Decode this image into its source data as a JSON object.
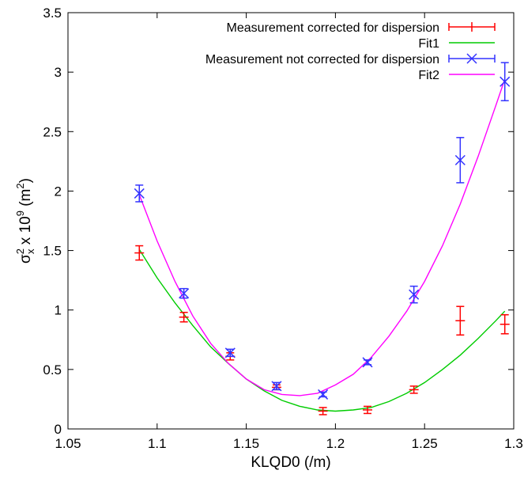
{
  "chart_data": {
    "type": "scatter",
    "xlabel": "KLQD0 (/m)",
    "ylabel": {
      "sigma": "σ",
      "sup1": "2",
      "sub1": "x",
      "mid": " x 10",
      "sup2": "9",
      "unit_open": " (m",
      "sup3": "2",
      "unit_close": ")"
    },
    "xlim": [
      1.05,
      1.3
    ],
    "ylim": [
      0,
      3.5
    ],
    "xticks": [
      1.05,
      1.1,
      1.15,
      1.2,
      1.25,
      1.3
    ],
    "xtick_labels": [
      "1.05",
      "1.1",
      "1.15",
      "1.2",
      "1.25",
      "1.3"
    ],
    "yticks": [
      0,
      0.5,
      1,
      1.5,
      2,
      2.5,
      3,
      3.5
    ],
    "ytick_labels": [
      "0",
      "0.5",
      "1",
      "1.5",
      "2",
      "2.5",
      "3",
      "3.5"
    ],
    "grid": false,
    "legend_position": "top-right",
    "series": [
      {
        "name": "Measurement corrected for dispersion",
        "kind": "errorbar",
        "marker": "plus",
        "color": "#ff0000",
        "points": [
          {
            "x": 1.09,
            "y": 1.48,
            "err": 0.06
          },
          {
            "x": 1.115,
            "y": 0.94,
            "err": 0.04
          },
          {
            "x": 1.141,
            "y": 0.61,
            "err": 0.03
          },
          {
            "x": 1.167,
            "y": 0.35,
            "err": 0.02
          },
          {
            "x": 1.193,
            "y": 0.15,
            "err": 0.03
          },
          {
            "x": 1.218,
            "y": 0.16,
            "err": 0.03
          },
          {
            "x": 1.244,
            "y": 0.33,
            "err": 0.03
          },
          {
            "x": 1.27,
            "y": 0.91,
            "err": 0.12
          },
          {
            "x": 1.295,
            "y": 0.88,
            "err": 0.08
          }
        ]
      },
      {
        "name": "Fit1",
        "kind": "line",
        "color": "#00cc00",
        "x": [
          1.09,
          1.1,
          1.11,
          1.12,
          1.13,
          1.14,
          1.15,
          1.16,
          1.17,
          1.18,
          1.19,
          1.2,
          1.21,
          1.22,
          1.23,
          1.24,
          1.25,
          1.26,
          1.27,
          1.28,
          1.29,
          1.295
        ],
        "y": [
          1.51,
          1.27,
          1.06,
          0.87,
          0.69,
          0.55,
          0.42,
          0.32,
          0.24,
          0.19,
          0.16,
          0.15,
          0.16,
          0.18,
          0.23,
          0.3,
          0.39,
          0.5,
          0.62,
          0.76,
          0.91,
          0.99
        ]
      },
      {
        "name": "Measurement not corrected for dispersion",
        "kind": "errorbar",
        "marker": "cross",
        "color": "#3333ff",
        "points": [
          {
            "x": 1.09,
            "y": 1.98,
            "err": 0.07
          },
          {
            "x": 1.115,
            "y": 1.14,
            "err": 0.04
          },
          {
            "x": 1.141,
            "y": 0.64,
            "err": 0.03
          },
          {
            "x": 1.167,
            "y": 0.36,
            "err": 0.03
          },
          {
            "x": 1.193,
            "y": 0.29,
            "err": 0.02
          },
          {
            "x": 1.218,
            "y": 0.56,
            "err": 0.02
          },
          {
            "x": 1.244,
            "y": 1.13,
            "err": 0.07
          },
          {
            "x": 1.27,
            "y": 2.26,
            "err": 0.19
          },
          {
            "x": 1.295,
            "y": 2.92,
            "err": 0.16
          }
        ]
      },
      {
        "name": "Fit2",
        "kind": "line",
        "color": "#ff00ff",
        "x": [
          1.09,
          1.1,
          1.11,
          1.12,
          1.13,
          1.14,
          1.15,
          1.16,
          1.17,
          1.18,
          1.19,
          1.2,
          1.21,
          1.22,
          1.23,
          1.24,
          1.25,
          1.26,
          1.27,
          1.28,
          1.29,
          1.295
        ],
        "y": [
          1.97,
          1.58,
          1.24,
          0.95,
          0.72,
          0.55,
          0.42,
          0.33,
          0.29,
          0.28,
          0.3,
          0.37,
          0.46,
          0.6,
          0.78,
          0.99,
          1.24,
          1.54,
          1.89,
          2.29,
          2.72,
          2.94
        ]
      }
    ]
  }
}
